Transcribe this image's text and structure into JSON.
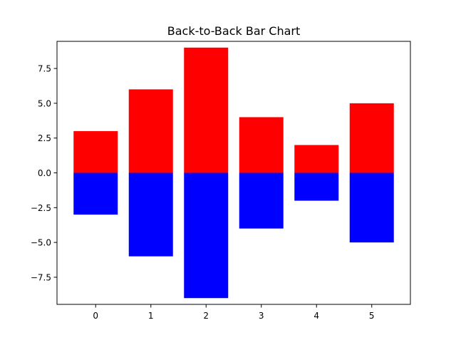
{
  "chart_data": {
    "type": "bar",
    "title": "Back-to-Back Bar Chart",
    "xlabel": "",
    "ylabel": "",
    "categories": [
      "0",
      "1",
      "2",
      "3",
      "4",
      "5"
    ],
    "series": [
      {
        "values": [
          3,
          6,
          9,
          4,
          2,
          5
        ],
        "color": "#ff0000"
      },
      {
        "values": [
          -3,
          -6,
          -9,
          -4,
          -2,
          -5
        ],
        "color": "#0000ff"
      }
    ],
    "xlim": [
      -0.7,
      5.7
    ],
    "ylim": [
      -9.45,
      9.45
    ],
    "yticks": [
      -7.5,
      -5.0,
      -2.5,
      0.0,
      2.5,
      5.0,
      7.5
    ],
    "ytick_labels": [
      "−7.5",
      "−5.0",
      "−2.5",
      "0.0",
      "2.5",
      "5.0",
      "7.5"
    ],
    "bar_width": 0.8,
    "grid": false,
    "legend": "none"
  }
}
